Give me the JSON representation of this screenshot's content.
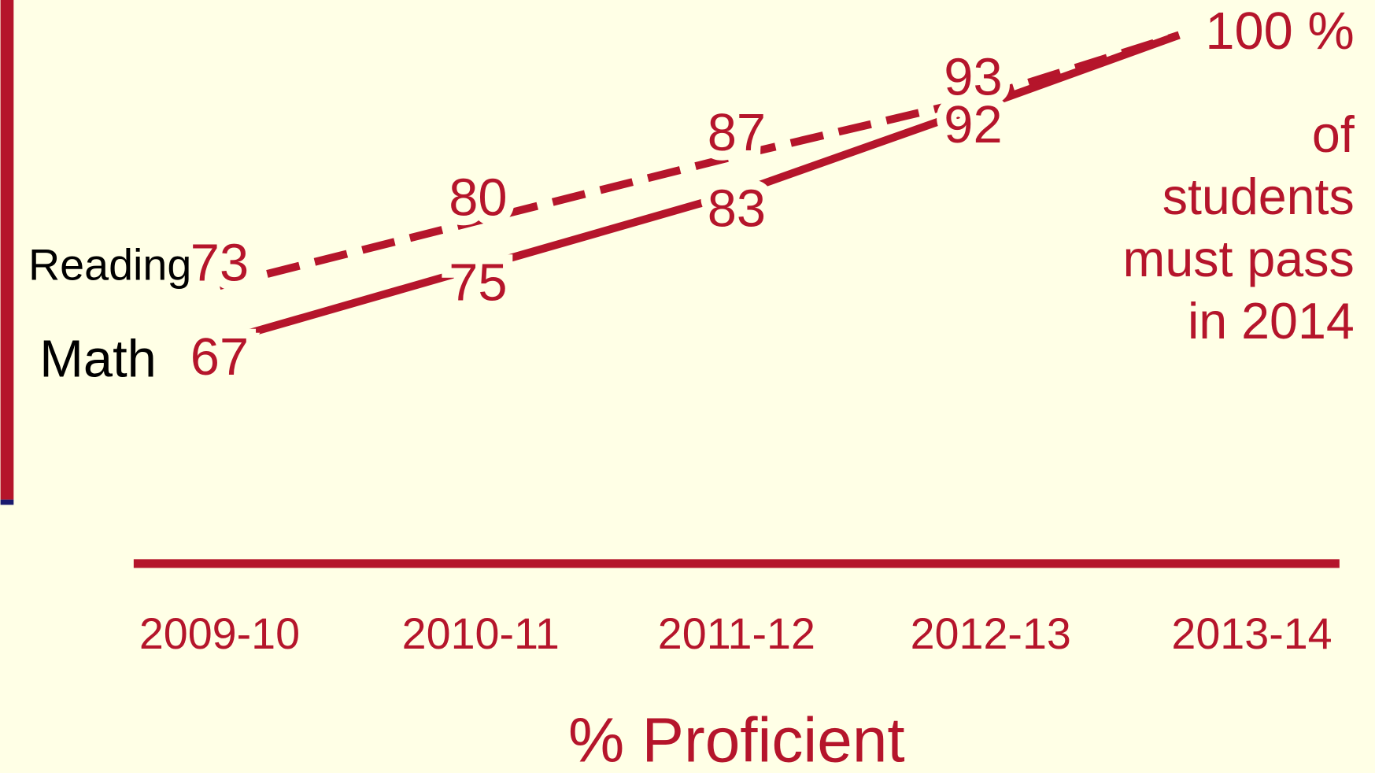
{
  "chart_data": {
    "type": "line",
    "x_label": "% Proficient",
    "categories": [
      "2009-10",
      "2010-11",
      "2011-12",
      "2012-13",
      "2013-14"
    ],
    "series": [
      {
        "name": "Reading",
        "color": "#b5152b",
        "dash": true,
        "values": [
          73,
          80,
          87,
          93,
          100
        ],
        "value_labels": [
          "73",
          "80",
          "87",
          "93",
          "100 %"
        ]
      },
      {
        "name": "Math",
        "color": "#b5152b",
        "dash": false,
        "values": [
          67,
          75,
          83,
          92,
          100
        ],
        "value_labels": [
          "67",
          "75",
          "83",
          "92",
          null
        ]
      }
    ],
    "annotation": [
      "of",
      "students",
      "must pass",
      "in 2014"
    ],
    "ylim": [
      60,
      100
    ]
  }
}
